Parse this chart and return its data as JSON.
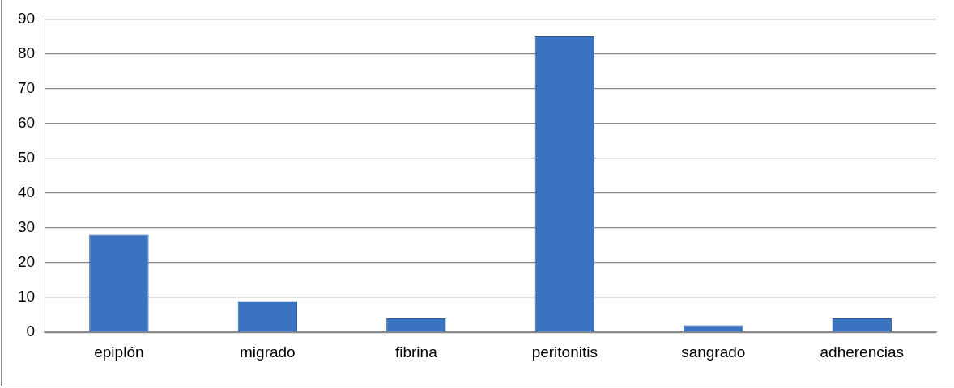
{
  "chart_data": {
    "type": "bar",
    "categories": [
      "epiplón",
      "migrado",
      "fibrina",
      "peritonitis",
      "sangrado",
      "adherencias"
    ],
    "values": [
      28,
      9,
      4,
      85,
      2,
      4
    ],
    "color": "#3a73c0",
    "ylim": [
      0,
      90
    ],
    "yticks": [
      0,
      10,
      20,
      30,
      40,
      50,
      60,
      70,
      80,
      90
    ],
    "grid": "y",
    "legend": false
  }
}
